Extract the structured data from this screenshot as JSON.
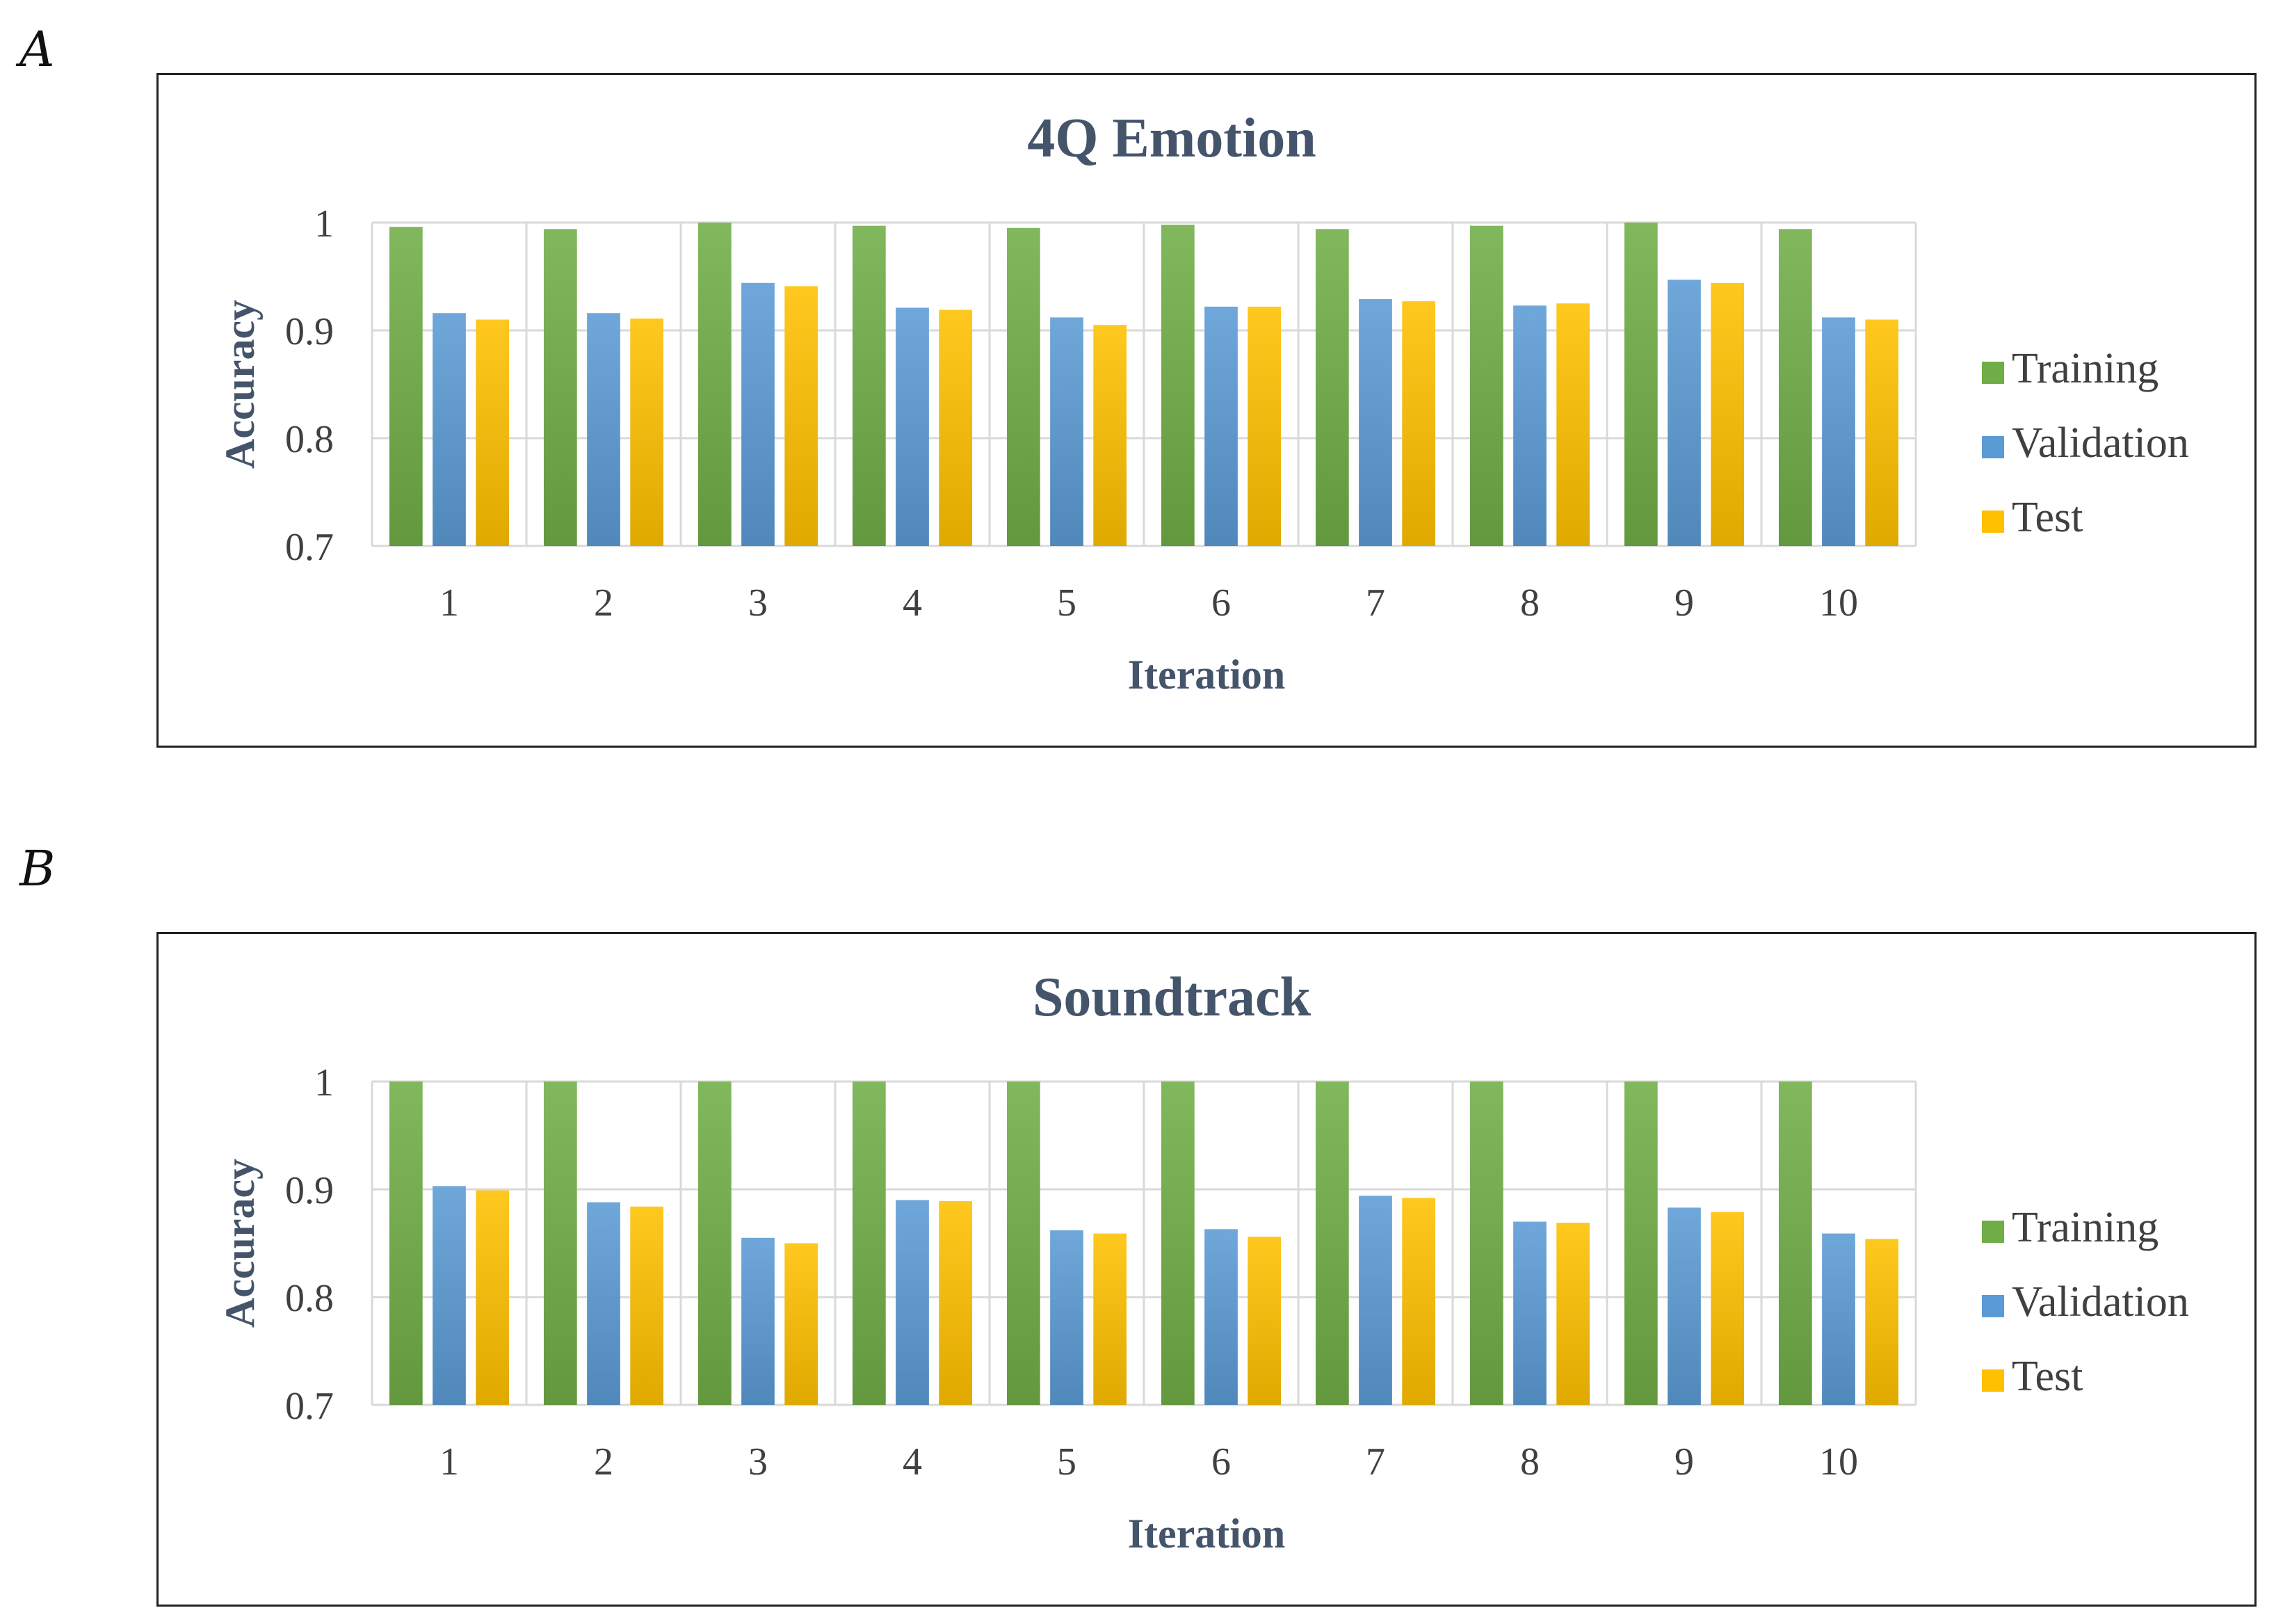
{
  "panels": [
    {
      "label": "A"
    },
    {
      "label": "B"
    }
  ],
  "chart_data": [
    {
      "type": "bar",
      "title": "4Q Emotion",
      "xlabel": "Iteration",
      "ylabel": "Accuracy",
      "ylim": [
        0.7,
        1
      ],
      "yticks": [
        "0.7",
        "0.8",
        "0.9",
        "1"
      ],
      "grid": true,
      "legend_position": "right",
      "categories": [
        "1",
        "2",
        "3",
        "4",
        "5",
        "6",
        "7",
        "8",
        "9",
        "10"
      ],
      "series": [
        {
          "name": "Training",
          "color": "#70ad47",
          "values": [
            0.996,
            0.994,
            1.0,
            0.997,
            0.995,
            0.998,
            0.994,
            0.997,
            1.0,
            0.994
          ]
        },
        {
          "name": "Validation",
          "color": "#5b9bd5",
          "values": [
            0.916,
            0.916,
            0.944,
            0.921,
            0.912,
            0.922,
            0.929,
            0.923,
            0.947,
            0.912
          ]
        },
        {
          "name": "Test",
          "color": "#ffc000",
          "values": [
            0.91,
            0.911,
            0.941,
            0.919,
            0.905,
            0.922,
            0.927,
            0.925,
            0.944,
            0.91
          ]
        }
      ]
    },
    {
      "type": "bar",
      "title": "Soundtrack",
      "xlabel": "Iteration",
      "ylabel": "Accuracy",
      "ylim": [
        0.7,
        1
      ],
      "yticks": [
        "0.7",
        "0.8",
        "0.9",
        "1"
      ],
      "grid": true,
      "legend_position": "right",
      "categories": [
        "1",
        "2",
        "3",
        "4",
        "5",
        "6",
        "7",
        "8",
        "9",
        "10"
      ],
      "series": [
        {
          "name": "Training",
          "color": "#70ad47",
          "values": [
            1.0,
            1.0,
            1.0,
            1.0,
            1.0,
            1.0,
            1.0,
            1.0,
            1.0,
            1.0
          ]
        },
        {
          "name": "Validation",
          "color": "#5b9bd5",
          "values": [
            0.903,
            0.888,
            0.855,
            0.89,
            0.862,
            0.863,
            0.894,
            0.87,
            0.883,
            0.859
          ]
        },
        {
          "name": "Test",
          "color": "#ffc000",
          "values": [
            0.899,
            0.884,
            0.85,
            0.889,
            0.859,
            0.856,
            0.892,
            0.869,
            0.879,
            0.854
          ]
        }
      ]
    }
  ]
}
